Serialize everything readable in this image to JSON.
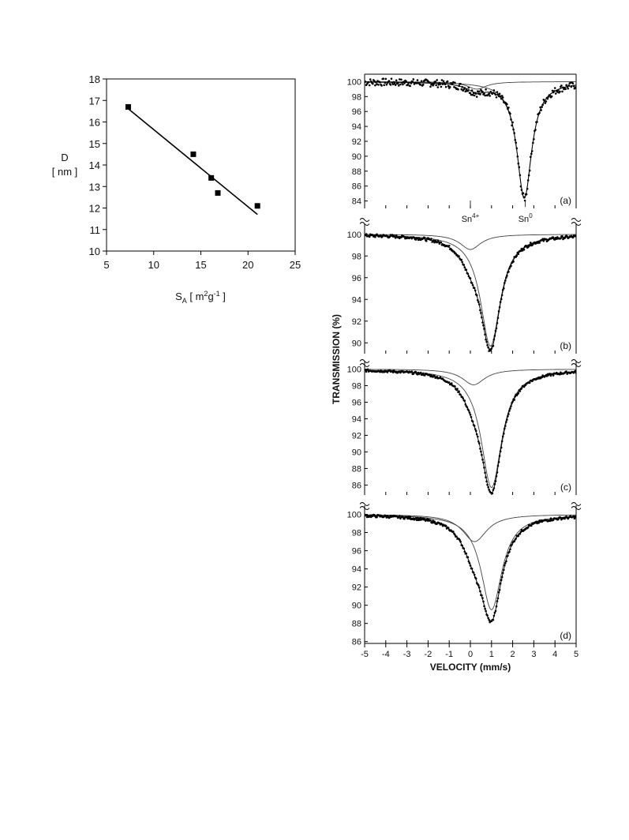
{
  "chart_data": [
    {
      "type": "scatter",
      "title": "",
      "xlabel": "S",
      "xlabel_sub": "A",
      "xlabel_unit_prefix": "[ m",
      "xlabel_unit_sup1": "2",
      "xlabel_unit_mid": "g",
      "xlabel_unit_sup2": "-1",
      "xlabel_unit_suffix": " ]",
      "ylabel_line1": "D",
      "ylabel_line2": "[ nm ]",
      "xlim": [
        5,
        25
      ],
      "ylim": [
        10,
        18
      ],
      "xticks": [
        5,
        10,
        15,
        20,
        25
      ],
      "yticks": [
        10,
        11,
        12,
        13,
        14,
        15,
        16,
        17,
        18
      ],
      "points": [
        {
          "x": 7.3,
          "y": 16.7
        },
        {
          "x": 14.2,
          "y": 14.5
        },
        {
          "x": 16.1,
          "y": 13.4
        },
        {
          "x": 16.8,
          "y": 12.7
        },
        {
          "x": 21.0,
          "y": 12.1
        }
      ],
      "fit_line": {
        "x": [
          7.2,
          21.0
        ],
        "y": [
          16.65,
          11.7
        ]
      }
    },
    {
      "type": "line",
      "title": "",
      "xlabel": "VELOCITY (mm/s)",
      "ylabel": "TRANSMISSION (%)",
      "xlim": [
        -5,
        5
      ],
      "xticks": [
        -5,
        -4,
        -3,
        -2,
        -1,
        0,
        1,
        2,
        3,
        4,
        5
      ],
      "markers": {
        "sn4_label": "Sn",
        "sn4_sup": "4+",
        "sn4_velocity": 0,
        "sn0_label": "Sn",
        "sn0_sup": "0",
        "sn0_velocity": 2.6
      },
      "panels": [
        {
          "label": "(a)",
          "ylim": [
            83,
            101
          ],
          "yticks": [
            84,
            86,
            88,
            90,
            92,
            94,
            96,
            98,
            100
          ],
          "components": [
            {
              "name": "",
              "center": 2.55,
              "depth": 15.6,
              "width": 0.85
            },
            {
              "name": "",
              "center": 0.3,
              "depth": 1.0,
              "width": 1.1
            }
          ],
          "noise": 0.5
        },
        {
          "label": "(b)",
          "ylim": [
            89,
            101
          ],
          "yticks": [
            90,
            92,
            94,
            96,
            98,
            100
          ],
          "components": [
            {
              "name": "",
              "center": 0.95,
              "depth": 10.3,
              "width": 1.15
            },
            {
              "name": "",
              "center": 0.0,
              "depth": 1.4,
              "width": 1.2
            }
          ],
          "noise": 0.15
        },
        {
          "label": "(c)",
          "ylim": [
            84.8,
            101
          ],
          "yticks": [
            86,
            88,
            90,
            92,
            94,
            96,
            98,
            100
          ],
          "components": [
            {
              "name": "",
              "center": 1.0,
              "depth": 14.3,
              "width": 1.2
            },
            {
              "name": "",
              "center": 0.15,
              "depth": 1.9,
              "width": 1.3
            }
          ],
          "noise": 0.15
        },
        {
          "label": "(d)",
          "ylim": [
            85.8,
            101
          ],
          "yticks": [
            86,
            88,
            90,
            92,
            94,
            96,
            98,
            100
          ],
          "components": [
            {
              "name": "",
              "center": 1.0,
              "depth": 10.5,
              "width": 1.2
            },
            {
              "name": "",
              "center": 0.2,
              "depth": 3.0,
              "width": 1.4
            }
          ],
          "noise": 0.15
        }
      ]
    }
  ]
}
